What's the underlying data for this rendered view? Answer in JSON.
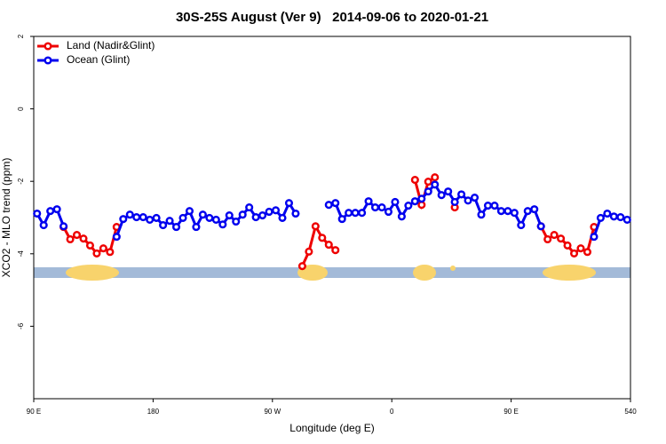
{
  "chart_data": {
    "type": "line",
    "title": "30S-25S August (Ver 9)   2014-09-06 to 2020-01-21",
    "x_label": "Longitude (deg E)",
    "y_label": "XCO2 - MLO trend (ppm)",
    "x": [
      92.5,
      97.5,
      102.5,
      107.5,
      112.5,
      117.5,
      122.5,
      127.5,
      132.5,
      137.5,
      142.5,
      147.5,
      152.5,
      157.5,
      162.5,
      167.5,
      172.5,
      177.5,
      182.5,
      187.5,
      192.5,
      197.5,
      202.5,
      207.5,
      212.5,
      217.5,
      222.5,
      227.5,
      232.5,
      237.5,
      242.5,
      247.5,
      252.5,
      257.5,
      262.5,
      267.5,
      272.5,
      277.5,
      282.5,
      287.5,
      292.5,
      297.5,
      302.5,
      307.5,
      312.5,
      317.5,
      322.5,
      327.5,
      332.5,
      337.5,
      342.5,
      347.5,
      352.5,
      357.5,
      362.5,
      367.5,
      372.5,
      377.5,
      382.5,
      387.5,
      392.5,
      397.5,
      402.5,
      407.5,
      412.5,
      417.5,
      422.5,
      427.5,
      432.5,
      437.5,
      442.5,
      447.5,
      452.5,
      457.5,
      462.5,
      467.5,
      472.5,
      477.5,
      482.5,
      487.5,
      492.5,
      497.5,
      502.5,
      507.5,
      512.5,
      517.5,
      522.5,
      527.5,
      532.5,
      537.5
    ],
    "series": [
      {
        "name": "Land (Nadir&Glint)",
        "color": "#ee0000",
        "values": [
          null,
          null,
          null,
          null,
          -3.26,
          -3.6,
          -3.48,
          -3.58,
          -3.77,
          -3.99,
          -3.85,
          -3.95,
          -3.26,
          null,
          null,
          null,
          null,
          null,
          null,
          null,
          null,
          null,
          null,
          null,
          null,
          null,
          null,
          null,
          null,
          null,
          null,
          null,
          null,
          null,
          null,
          null,
          null,
          null,
          null,
          null,
          -4.34,
          -3.94,
          -3.24,
          -3.56,
          -3.75,
          -3.9,
          null,
          null,
          null,
          null,
          null,
          null,
          null,
          null,
          null,
          null,
          null,
          -1.96,
          -2.65,
          -2.01,
          -1.89,
          null,
          null,
          -2.72,
          null,
          null,
          null,
          null,
          null,
          null,
          null,
          null,
          null,
          null,
          null,
          null,
          -3.24,
          -3.6,
          -3.48,
          -3.58,
          -3.77,
          -3.99,
          -3.85,
          -3.95,
          -3.26,
          null,
          null,
          null,
          null,
          null
        ]
      },
      {
        "name": "Ocean (Glint)",
        "color": "#0000ee",
        "values": [
          -2.89,
          -3.21,
          -2.82,
          -2.77,
          -3.24,
          null,
          null,
          null,
          null,
          null,
          null,
          null,
          -3.53,
          -3.04,
          -2.92,
          -2.99,
          -2.99,
          -3.06,
          -3.01,
          -3.21,
          -3.09,
          -3.26,
          -3.01,
          -2.82,
          -3.26,
          -2.92,
          -3.01,
          -3.06,
          -3.19,
          -2.94,
          -3.11,
          -2.92,
          -2.72,
          -2.99,
          -2.94,
          -2.84,
          -2.8,
          -3.01,
          -2.6,
          -2.89,
          null,
          null,
          null,
          null,
          -2.65,
          -2.6,
          -3.04,
          -2.87,
          -2.87,
          -2.87,
          -2.55,
          -2.72,
          -2.72,
          -2.84,
          -2.57,
          -2.97,
          -2.67,
          -2.55,
          -2.48,
          -2.28,
          -2.09,
          -2.38,
          -2.28,
          -2.57,
          -2.36,
          -2.53,
          -2.45,
          -2.92,
          -2.67,
          -2.67,
          -2.82,
          -2.82,
          -2.87,
          -3.21,
          -2.82,
          -2.77,
          -3.24,
          null,
          null,
          null,
          null,
          null,
          null,
          null,
          -3.53,
          -3.01,
          -2.89,
          -2.97,
          -2.99,
          -3.06
        ]
      }
    ],
    "xlim": [
      90,
      540
    ],
    "xticks": [
      {
        "value": 90,
        "label": "90 E"
      },
      180,
      {
        "value": 270,
        "label": "90 W"
      },
      {
        "value": 360,
        "label": "0"
      },
      {
        "value": 450,
        "label": "90 E"
      },
      540
    ],
    "ylim": [
      -8,
      2
    ],
    "yticks": [
      2,
      0,
      -2,
      -4,
      -6
    ],
    "legend": "top-left",
    "grid": false
  }
}
